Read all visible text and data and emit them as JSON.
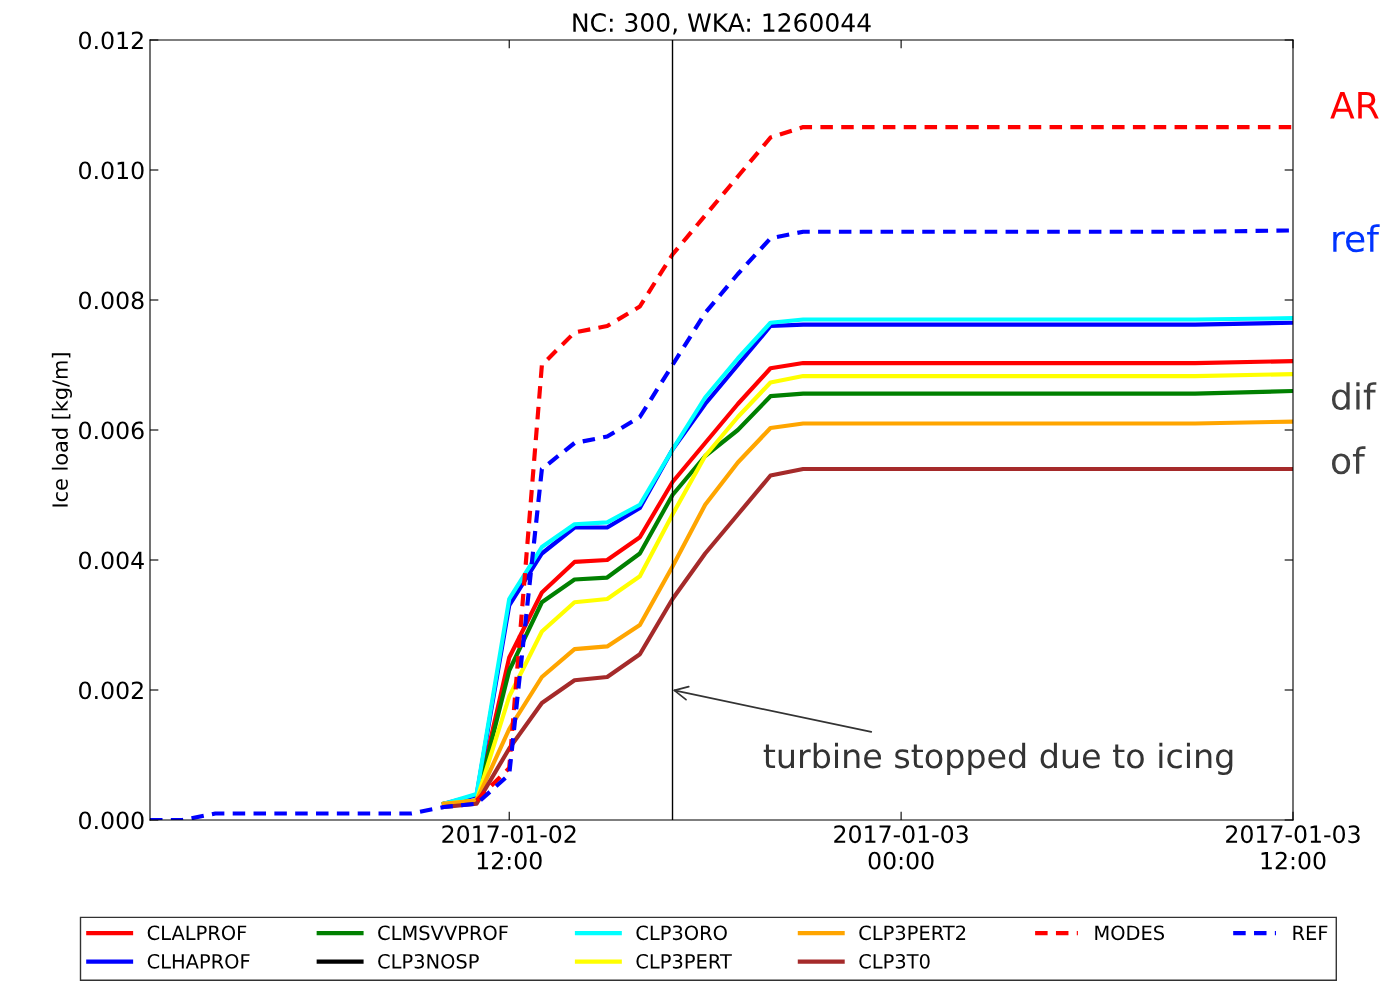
{
  "chart_data": {
    "type": "line",
    "title": "NC: 300, WKA: 1260044",
    "ylabel": "Ice load [kg/m]",
    "x": [
      "2017-01-02T01:00",
      "2017-01-02T02:00",
      "2017-01-02T03:00",
      "2017-01-02T04:00",
      "2017-01-02T05:00",
      "2017-01-02T06:00",
      "2017-01-02T07:00",
      "2017-01-02T08:00",
      "2017-01-02T09:00",
      "2017-01-02T10:00",
      "2017-01-02T11:00",
      "2017-01-02T12:00",
      "2017-01-02T13:00",
      "2017-01-02T14:00",
      "2017-01-02T15:00",
      "2017-01-02T16:00",
      "2017-01-02T17:00",
      "2017-01-02T18:00",
      "2017-01-02T19:00",
      "2017-01-02T20:00",
      "2017-01-02T21:00",
      "2017-01-03T03:00",
      "2017-01-03T09:00",
      "2017-01-03T12:00"
    ],
    "xlim": [
      "2017-01-02T01:00",
      "2017-01-03T12:00"
    ],
    "xticks": [
      {
        "value": "2017-01-02T12:00",
        "label": "2017-01-02\n12:00"
      },
      {
        "value": "2017-01-03T00:00",
        "label": "2017-01-03\n00:00"
      },
      {
        "value": "2017-01-03T12:00",
        "label": "2017-01-03\n12:00"
      }
    ],
    "ylim": [
      0,
      0.012
    ],
    "yticks": [
      {
        "value": 0,
        "label": "0.000"
      },
      {
        "value": 0.002,
        "label": "0.002"
      },
      {
        "value": 0.004,
        "label": "0.004"
      },
      {
        "value": 0.006,
        "label": "0.006"
      },
      {
        "value": 0.008,
        "label": "0.008"
      },
      {
        "value": 0.01,
        "label": "0.010"
      },
      {
        "value": 0.012,
        "label": "0.012"
      }
    ],
    "series": [
      {
        "name": "CLALPROF",
        "color": "#ff0000",
        "line_style": "solid",
        "values": [
          null,
          null,
          null,
          null,
          null,
          null,
          null,
          null,
          null,
          0.00025,
          0.0003,
          0.0025,
          0.0035,
          0.00397,
          0.004,
          0.00435,
          0.0052,
          0.0058,
          0.0064,
          0.00695,
          0.00703,
          0.00703,
          0.00703,
          0.00706
        ]
      },
      {
        "name": "CLHAPROF",
        "color": "#0000ff",
        "line_style": "solid",
        "values": [
          null,
          null,
          null,
          null,
          null,
          null,
          null,
          null,
          null,
          0.00025,
          0.00038,
          0.0033,
          0.0041,
          0.0045,
          0.0045,
          0.0048,
          0.0057,
          0.0064,
          0.007,
          0.0076,
          0.00762,
          0.00762,
          0.00762,
          0.00765
        ]
      },
      {
        "name": "CLMSVVPROF",
        "color": "#008000",
        "line_style": "solid",
        "values": [
          null,
          null,
          null,
          null,
          null,
          null,
          null,
          null,
          null,
          0.00025,
          0.0003,
          0.0023,
          0.00335,
          0.0037,
          0.00373,
          0.0041,
          0.005,
          0.0056,
          0.006,
          0.00652,
          0.00656,
          0.00656,
          0.00656,
          0.0066
        ]
      },
      {
        "name": "CLP3NOSP",
        "color": "#000000",
        "line_style": "solid",
        "values": [
          null,
          null,
          null,
          null,
          null,
          null,
          null,
          null,
          null,
          null,
          null,
          null,
          null,
          null,
          null,
          null,
          null,
          null,
          null,
          null,
          null,
          null,
          null,
          null
        ]
      },
      {
        "name": "CLP3ORO",
        "color": "#00ffff",
        "line_style": "solid",
        "values": [
          null,
          null,
          null,
          null,
          null,
          null,
          null,
          null,
          null,
          0.00025,
          0.0004,
          0.0034,
          0.0042,
          0.00455,
          0.00458,
          0.00485,
          0.0057,
          0.0065,
          0.0071,
          0.00765,
          0.0077,
          0.0077,
          0.0077,
          0.00772
        ]
      },
      {
        "name": "CLP3PERT",
        "color": "#ffff00",
        "line_style": "solid",
        "values": [
          null,
          null,
          null,
          null,
          null,
          null,
          null,
          null,
          null,
          0.00025,
          0.0003,
          0.0019,
          0.0029,
          0.00335,
          0.0034,
          0.00375,
          0.0047,
          0.0056,
          0.0062,
          0.00673,
          0.00683,
          0.00683,
          0.00683,
          0.00686
        ]
      },
      {
        "name": "CLP3PERT2",
        "color": "#ffa500",
        "line_style": "solid",
        "values": [
          null,
          null,
          null,
          null,
          null,
          null,
          null,
          null,
          null,
          0.00025,
          0.0003,
          0.0014,
          0.0022,
          0.00263,
          0.00267,
          0.003,
          0.0039,
          0.00485,
          0.0055,
          0.00603,
          0.0061,
          0.0061,
          0.0061,
          0.00613
        ]
      },
      {
        "name": "CLP3T0",
        "color": "#a52a2a",
        "line_style": "solid",
        "values": [
          null,
          null,
          null,
          null,
          null,
          null,
          null,
          null,
          null,
          0.0002,
          0.00025,
          0.0011,
          0.0018,
          0.00215,
          0.0022,
          0.00255,
          0.0034,
          0.0041,
          0.0047,
          0.0053,
          0.0054,
          0.0054,
          0.0054,
          0.0054
        ]
      },
      {
        "name": "MODES",
        "color": "#ff0000",
        "line_style": "dashed",
        "values": [
          null,
          null,
          null,
          null,
          null,
          null,
          null,
          null,
          null,
          null,
          0.0003,
          0.0008,
          0.007,
          0.0075,
          0.0076,
          0.0079,
          0.0087,
          0.0093,
          0.0099,
          0.0105,
          0.01066,
          0.01066,
          0.01066,
          0.01066
        ]
      },
      {
        "name": "REF",
        "color": "#0000ff",
        "line_style": "dashed",
        "values": [
          0,
          0,
          0.0001,
          0.0001,
          0.0001,
          0.0001,
          0.0001,
          0.0001,
          0.0001,
          0.0002,
          0.00025,
          0.0007,
          0.0054,
          0.0058,
          0.0059,
          0.0062,
          0.007,
          0.0078,
          0.0084,
          0.00895,
          0.00905,
          0.00905,
          0.00905,
          0.00907
        ]
      }
    ],
    "ref_lines": [
      {
        "axis": "x",
        "value": "2017-01-02T17:00",
        "color": "#000000"
      }
    ],
    "annotations": [
      {
        "text": "turbine stopped due to icing",
        "x": "2017-01-02T17:00",
        "y": 0.002
      },
      "AR",
      "ref",
      "dif",
      "of"
    ],
    "legend": "bottom",
    "grid": false,
    "marker": "none"
  }
}
